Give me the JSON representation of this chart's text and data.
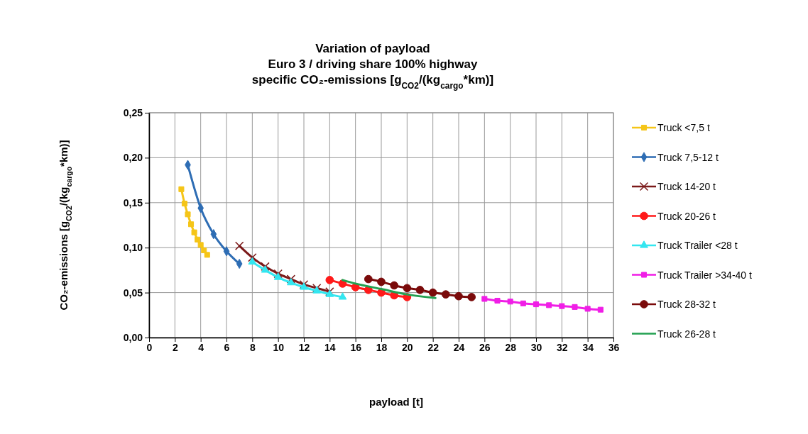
{
  "chart_data": {
    "type": "line",
    "title": "Variation of payload\nEuro 3 / driving share 100% highway\nspecific CO₂-emissions [g$_{CO2}$/(kg$_{cargo}$*km)]",
    "xlabel": "payload [t]",
    "ylabel": "CO₂-emissions [g$_{CO2}$/(kg$_{cargo}$*km)]",
    "xlim": [
      0,
      36
    ],
    "xticks": [
      0,
      2,
      4,
      6,
      8,
      10,
      12,
      14,
      16,
      18,
      20,
      22,
      24,
      26,
      28,
      30,
      32,
      34,
      36
    ],
    "ylim": [
      0,
      0.25
    ],
    "yticks": [
      {
        "value": 0,
        "label": "0,00"
      },
      {
        "value": 0.05,
        "label": "0,05"
      },
      {
        "value": 0.1,
        "label": "0,10"
      },
      {
        "value": 0.15,
        "label": "0,15"
      },
      {
        "value": 0.2,
        "label": "0,20"
      },
      {
        "value": 0.25,
        "label": "0,25"
      }
    ],
    "grid": true,
    "legend": "right",
    "series": [
      {
        "name": "Truck <7,5 t",
        "color": "#f5c518",
        "marker": "square",
        "x": [
          2.5,
          2.75,
          3,
          3.25,
          3.5,
          3.75,
          4,
          4.25,
          4.5
        ],
        "values": [
          0.165,
          0.149,
          0.137,
          0.126,
          0.117,
          0.109,
          0.103,
          0.097,
          0.092
        ]
      },
      {
        "name": "Truck 7,5-12 t",
        "color": "#2e6db4",
        "marker": "diamond",
        "x": [
          3,
          4,
          5,
          6,
          7
        ],
        "values": [
          0.192,
          0.144,
          0.115,
          0.096,
          0.082
        ]
      },
      {
        "name": "Truck 14-20 t",
        "color": "#7b1a1a",
        "marker": "cross",
        "x": [
          7,
          8,
          9,
          10,
          11,
          12,
          13,
          14
        ],
        "values": [
          0.102,
          0.089,
          0.079,
          0.071,
          0.065,
          0.059,
          0.055,
          0.051
        ]
      },
      {
        "name": "Truck 20-26 t",
        "color": "#ff1a1a",
        "marker": "circle",
        "x": [
          14,
          15,
          16,
          17,
          18,
          19,
          20
        ],
        "values": [
          0.064,
          0.06,
          0.056,
          0.053,
          0.05,
          0.047,
          0.045
        ]
      },
      {
        "name": "Truck Trailer <28 t",
        "color": "#33e6f0",
        "marker": "triangle",
        "x": [
          8,
          9,
          10,
          11,
          12,
          13,
          14,
          15
        ],
        "values": [
          0.084,
          0.075,
          0.067,
          0.061,
          0.056,
          0.052,
          0.048,
          0.045
        ]
      },
      {
        "name": "Truck Trailer >34-40 t",
        "color": "#f01ee6",
        "marker": "square",
        "x": [
          26,
          27,
          28,
          29,
          30,
          31,
          32,
          33,
          34,
          35
        ],
        "values": [
          0.043,
          0.041,
          0.04,
          0.038,
          0.037,
          0.036,
          0.035,
          0.034,
          0.032,
          0.031
        ]
      },
      {
        "name": "Truck 28-32 t",
        "color": "#7a0a0a",
        "marker": "circle",
        "x": [
          17,
          18,
          19,
          20,
          21,
          22,
          23,
          24,
          25
        ],
        "values": [
          0.065,
          0.062,
          0.058,
          0.055,
          0.053,
          0.05,
          0.048,
          0.046,
          0.045
        ]
      },
      {
        "name": "Truck 26-28 t",
        "color": "#22a050",
        "marker": "none",
        "x": [
          15,
          16,
          18,
          20,
          22.2
        ],
        "values": [
          0.064,
          0.06,
          0.054,
          0.048,
          0.044
        ]
      }
    ]
  }
}
